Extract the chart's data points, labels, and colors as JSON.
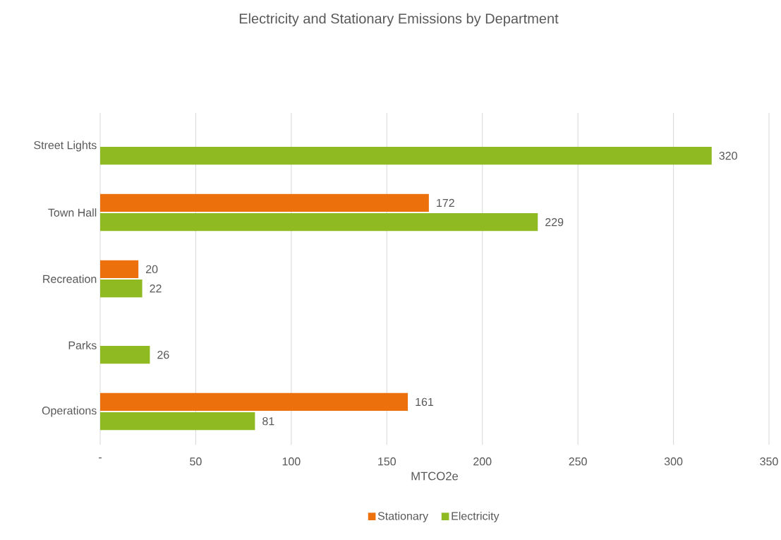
{
  "chart_data": {
    "type": "bar",
    "orientation": "horizontal",
    "title": "Electricity and Stationary Emissions by Department",
    "xlabel": "MTCO2e",
    "categories": [
      "Street Lights",
      "Town Hall",
      "Recreation",
      "Parks",
      "Operations"
    ],
    "series": [
      {
        "name": "Stationary",
        "color": "#ec700c",
        "values": [
          null,
          172,
          20,
          null,
          161
        ]
      },
      {
        "name": "Electricity",
        "color": "#8fba22",
        "values": [
          320,
          229,
          22,
          26,
          81
        ]
      }
    ],
    "xlim": [
      0,
      350
    ],
    "xticks": [
      {
        "value": 0,
        "label": "-"
      },
      50,
      100,
      150,
      200,
      250,
      300,
      350
    ],
    "grid": "x",
    "legend": "bottom",
    "data_labels": true
  }
}
